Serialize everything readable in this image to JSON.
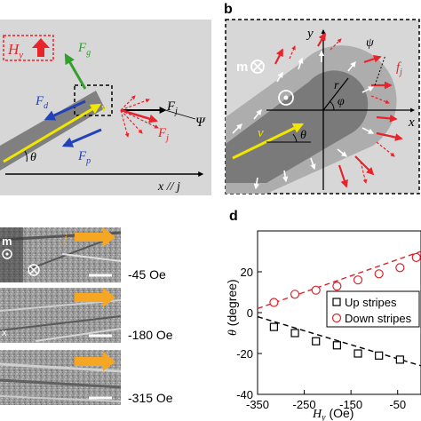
{
  "panel_a": {
    "field_label": "H",
    "field_sub": "y",
    "labels": {
      "Fg": {
        "main": "F",
        "sub": "g"
      },
      "Fd": {
        "main": "F",
        "sub": "d"
      },
      "Fp": {
        "main": "F",
        "sub": "p"
      },
      "Fj": {
        "main": "F",
        "sub": "j"
      },
      "Fj2": {
        "main": "F",
        "sub": "j"
      },
      "v": "v",
      "theta": "θ",
      "psi": "Ψ",
      "axis": "x // j"
    },
    "colors": {
      "background": "#d7d7d7",
      "stripe": "#808080",
      "accent_red": "#e8242b",
      "green": "#33a02c",
      "blue": "#2342b8",
      "yellow": "#f0e600"
    }
  },
  "panel_b": {
    "letter": "b",
    "labels": {
      "m": "m",
      "y": "y",
      "x": "x",
      "r": "r",
      "phi": "φ",
      "theta": "θ",
      "v": "v",
      "psi": "ψ",
      "fj": {
        "main": "f",
        "sub": "j"
      }
    }
  },
  "panel_c": {
    "images": [
      {
        "label": "-45 Oe",
        "tag": "j"
      },
      {
        "label": "-180 Oe"
      },
      {
        "label": "-315 Oe"
      }
    ],
    "inset": {
      "m": "m",
      "x": "x"
    },
    "colors": {
      "arrow": "#f5a623"
    }
  },
  "panel_d": {
    "letter": "d",
    "legend": [
      "Up stripes",
      "Down stripes"
    ],
    "colors": {
      "up": "#000000",
      "down": "#d9232a"
    }
  },
  "chart_data": {
    "type": "scatter",
    "title": "",
    "xlabel": "H_y (Oe)",
    "ylabel": "θ (degree)",
    "xlim": [
      -350,
      0
    ],
    "ylim": [
      -40,
      40
    ],
    "x_ticks": [
      -350,
      -250,
      -150,
      -50
    ],
    "y_ticks": [
      -40,
      -20,
      0,
      20
    ],
    "grid": false,
    "legend_position": "right",
    "series": [
      {
        "name": "Up stripes",
        "marker": "square",
        "x": [
          -315,
          -270,
          -225,
          -180,
          -135,
          -90,
          -45
        ],
        "y": [
          -7,
          -10,
          -14,
          -16,
          -20,
          -21,
          -23
        ],
        "fit": {
          "x": [
            -350,
            0
          ],
          "y": [
            -2,
            -26
          ]
        }
      },
      {
        "name": "Down stripes",
        "marker": "circle",
        "x": [
          -315,
          -270,
          -225,
          -180,
          -135,
          -90,
          -45,
          -10
        ],
        "y": [
          5,
          9,
          11,
          13,
          16,
          19,
          22,
          27
        ],
        "fit": {
          "x": [
            -350,
            0
          ],
          "y": [
            2,
            30
          ]
        }
      }
    ]
  }
}
